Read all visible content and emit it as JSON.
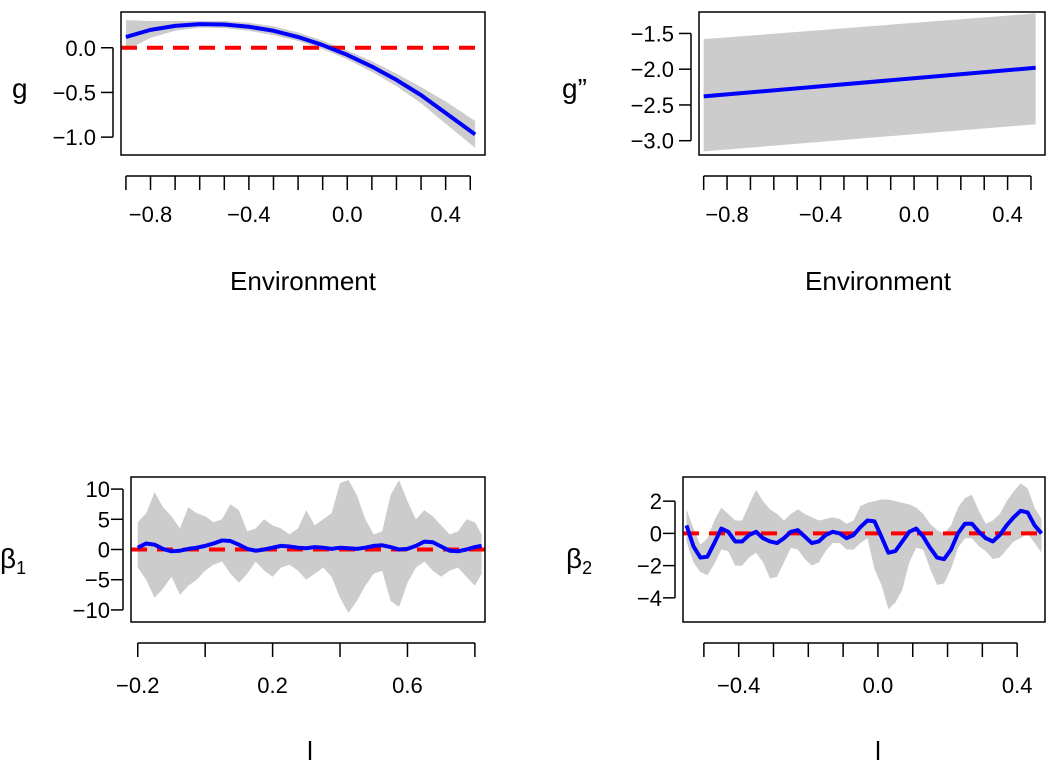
{
  "colors": {
    "fit": "#0000ff",
    "reference": "#ff0000",
    "band": "#cccccc",
    "axis": "#000000"
  },
  "chart_data": [
    {
      "id": "panel-g",
      "type": "line",
      "xlabel": "Environment",
      "ylabel": "g",
      "ylabel_sub": "",
      "xlim": [
        -0.92,
        0.56
      ],
      "ylim": [
        -1.2,
        0.4
      ],
      "xticks": [
        -0.9,
        -0.8,
        -0.7,
        -0.6,
        -0.5,
        -0.4,
        -0.3,
        -0.2,
        -0.1,
        0.0,
        0.1,
        0.2,
        0.3,
        0.4,
        0.5
      ],
      "xtick_labels": [
        {
          "value": -0.8,
          "label": "−0.8"
        },
        {
          "value": -0.4,
          "label": "−0.4"
        },
        {
          "value": 0.0,
          "label": "0.0"
        },
        {
          "value": 0.4,
          "label": "0.4"
        }
      ],
      "yticks": [
        {
          "value": -1.0,
          "label": "−1.0"
        },
        {
          "value": -0.5,
          "label": "−0.5"
        },
        {
          "value": 0.0,
          "label": "0.0"
        }
      ],
      "reference_line": 0,
      "x": [
        -0.9,
        -0.8,
        -0.7,
        -0.6,
        -0.5,
        -0.4,
        -0.3,
        -0.2,
        -0.1,
        0.0,
        0.1,
        0.2,
        0.3,
        0.4,
        0.52
      ],
      "fit": [
        0.12,
        0.2,
        0.245,
        0.265,
        0.26,
        0.235,
        0.19,
        0.12,
        0.03,
        -0.08,
        -0.21,
        -0.36,
        -0.53,
        -0.73,
        -0.97
      ],
      "lower": [
        -0.03,
        0.11,
        0.19,
        0.225,
        0.22,
        0.19,
        0.14,
        0.075,
        -0.015,
        -0.13,
        -0.27,
        -0.43,
        -0.62,
        -0.85,
        -1.12
      ],
      "upper": [
        0.31,
        0.3,
        0.3,
        0.3,
        0.3,
        0.28,
        0.24,
        0.17,
        0.08,
        -0.03,
        -0.15,
        -0.29,
        -0.44,
        -0.6,
        -0.82
      ]
    },
    {
      "id": "panel-g2",
      "type": "line",
      "xlabel": "Environment",
      "ylabel": "g”",
      "ylabel_sub": "",
      "xlim": [
        -0.92,
        0.56
      ],
      "ylim": [
        -3.2,
        -1.2
      ],
      "xticks": [
        -0.9,
        -0.8,
        -0.7,
        -0.6,
        -0.5,
        -0.4,
        -0.3,
        -0.2,
        -0.1,
        0.0,
        0.1,
        0.2,
        0.3,
        0.4,
        0.5
      ],
      "xtick_labels": [
        {
          "value": -0.8,
          "label": "−0.8"
        },
        {
          "value": -0.4,
          "label": "−0.4"
        },
        {
          "value": 0.0,
          "label": "0.0"
        },
        {
          "value": 0.4,
          "label": "0.4"
        }
      ],
      "yticks": [
        {
          "value": -3.0,
          "label": "−3.0"
        },
        {
          "value": -2.5,
          "label": "−2.5"
        },
        {
          "value": -2.0,
          "label": "−2.0"
        },
        {
          "value": -1.5,
          "label": "−1.5"
        }
      ],
      "reference_line": null,
      "x": [
        -0.9,
        0.52
      ],
      "fit": [
        -2.38,
        -1.98
      ],
      "lower": [
        -3.15,
        -2.77
      ],
      "upper": [
        -1.58,
        -1.22
      ]
    },
    {
      "id": "panel-b1",
      "type": "line",
      "xlabel": "l",
      "ylabel": "β",
      "ylabel_sub": "1",
      "xlim": [
        -0.22,
        0.83
      ],
      "ylim": [
        -12,
        12
      ],
      "xticks": [
        -0.2,
        0.0,
        0.2,
        0.4,
        0.6,
        0.8
      ],
      "xtick_labels": [
        {
          "value": -0.2,
          "label": "−0.2"
        },
        {
          "value": 0.2,
          "label": "0.2"
        },
        {
          "value": 0.6,
          "label": "0.6"
        }
      ],
      "yticks": [
        {
          "value": -10,
          "label": "−10"
        },
        {
          "value": -5,
          "label": "−5"
        },
        {
          "value": 0,
          "label": "0"
        },
        {
          "value": 5,
          "label": "5"
        },
        {
          "value": 10,
          "label": "10"
        }
      ],
      "reference_line": 0,
      "x": [
        -0.2,
        -0.175,
        -0.15,
        -0.125,
        -0.1,
        -0.075,
        -0.05,
        -0.025,
        0.0,
        0.025,
        0.05,
        0.075,
        0.1,
        0.125,
        0.15,
        0.175,
        0.2,
        0.225,
        0.25,
        0.275,
        0.3,
        0.325,
        0.35,
        0.375,
        0.4,
        0.425,
        0.45,
        0.475,
        0.5,
        0.525,
        0.55,
        0.575,
        0.6,
        0.625,
        0.65,
        0.675,
        0.7,
        0.725,
        0.75,
        0.775,
        0.8,
        0.82
      ],
      "fit": [
        0.3,
        1.0,
        0.8,
        0.1,
        -0.3,
        -0.2,
        0.1,
        0.3,
        0.6,
        1.0,
        1.5,
        1.4,
        0.8,
        0.1,
        -0.2,
        0.0,
        0.3,
        0.6,
        0.5,
        0.3,
        0.2,
        0.4,
        0.3,
        0.1,
        0.3,
        0.2,
        0.1,
        0.3,
        0.6,
        0.7,
        0.4,
        0.0,
        0.1,
        0.6,
        1.3,
        1.2,
        0.5,
        -0.2,
        -0.3,
        0.0,
        0.4,
        0.6
      ],
      "lower": [
        -3.0,
        -5.0,
        -8.0,
        -6.5,
        -4.5,
        -7.5,
        -6.0,
        -5.0,
        -3.5,
        -2.5,
        -2.0,
        -4.0,
        -5.5,
        -4.0,
        -2.0,
        -3.5,
        -4.5,
        -3.0,
        -2.5,
        -3.5,
        -5.0,
        -4.0,
        -3.0,
        -4.5,
        -8.0,
        -10.5,
        -8.5,
        -6.0,
        -4.0,
        -3.5,
        -8.5,
        -9.5,
        -5.5,
        -3.0,
        -2.0,
        -3.5,
        -4.5,
        -3.5,
        -3.0,
        -4.5,
        -6.0,
        -4.0
      ],
      "upper": [
        4.5,
        6.0,
        9.5,
        7.0,
        5.5,
        3.5,
        7.0,
        6.0,
        5.5,
        4.5,
        5.0,
        7.5,
        6.5,
        3.0,
        3.5,
        5.0,
        4.0,
        3.5,
        2.5,
        3.5,
        6.5,
        4.0,
        5.0,
        6.0,
        11.0,
        11.5,
        9.0,
        5.0,
        2.5,
        3.0,
        9.0,
        11.5,
        8.0,
        5.0,
        6.5,
        5.5,
        4.0,
        2.5,
        3.0,
        5.0,
        4.5,
        2.5
      ]
    },
    {
      "id": "panel-b2",
      "type": "line",
      "xlabel": "l",
      "ylabel": "β",
      "ylabel_sub": "2",
      "xlim": [
        -0.56,
        0.48
      ],
      "ylim": [
        -5.5,
        3.5
      ],
      "xticks": [
        -0.5,
        -0.4,
        -0.3,
        -0.2,
        -0.1,
        0.0,
        0.1,
        0.2,
        0.3,
        0.4
      ],
      "xtick_labels": [
        {
          "value": -0.4,
          "label": "−0.4"
        },
        {
          "value": 0.0,
          "label": "0.0"
        },
        {
          "value": 0.4,
          "label": "0.4"
        }
      ],
      "yticks": [
        {
          "value": -4,
          "label": "−4"
        },
        {
          "value": -2,
          "label": "−2"
        },
        {
          "value": 0,
          "label": "0"
        },
        {
          "value": 2,
          "label": "2"
        }
      ],
      "reference_line": 0,
      "x": [
        -0.55,
        -0.53,
        -0.51,
        -0.49,
        -0.47,
        -0.45,
        -0.43,
        -0.41,
        -0.39,
        -0.37,
        -0.35,
        -0.33,
        -0.31,
        -0.29,
        -0.27,
        -0.25,
        -0.23,
        -0.21,
        -0.19,
        -0.17,
        -0.15,
        -0.13,
        -0.11,
        -0.09,
        -0.07,
        -0.05,
        -0.03,
        -0.01,
        0.01,
        0.03,
        0.05,
        0.07,
        0.09,
        0.11,
        0.13,
        0.15,
        0.17,
        0.19,
        0.21,
        0.23,
        0.25,
        0.27,
        0.29,
        0.31,
        0.33,
        0.35,
        0.37,
        0.39,
        0.41,
        0.43,
        0.45,
        0.47
      ],
      "fit": [
        0.5,
        -0.8,
        -1.5,
        -1.45,
        -0.6,
        0.3,
        0.1,
        -0.5,
        -0.5,
        -0.1,
        0.1,
        -0.3,
        -0.5,
        -0.6,
        -0.3,
        0.1,
        0.2,
        -0.2,
        -0.6,
        -0.5,
        -0.1,
        0.1,
        0.0,
        -0.3,
        -0.1,
        0.4,
        0.8,
        0.75,
        -0.2,
        -1.2,
        -1.1,
        -0.5,
        0.1,
        0.3,
        -0.2,
        -0.9,
        -1.5,
        -1.6,
        -1.0,
        0.0,
        0.6,
        0.6,
        0.1,
        -0.3,
        -0.5,
        -0.1,
        0.5,
        1.0,
        1.4,
        1.3,
        0.5,
        0.0
      ],
      "lower": [
        -0.5,
        -1.8,
        -2.4,
        -2.6,
        -1.9,
        -1.0,
        -1.1,
        -2.0,
        -2.0,
        -1.5,
        -1.2,
        -1.8,
        -2.8,
        -2.7,
        -1.8,
        -0.9,
        -1.0,
        -1.6,
        -2.0,
        -1.8,
        -1.1,
        -0.6,
        -0.6,
        -1.0,
        -1.0,
        -0.6,
        -0.3,
        -2.2,
        -3.2,
        -4.7,
        -4.3,
        -3.5,
        -1.8,
        -0.9,
        -1.0,
        -2.2,
        -3.2,
        -3.1,
        -2.2,
        -0.9,
        -0.3,
        -0.3,
        -0.8,
        -1.1,
        -1.6,
        -1.5,
        -1.0,
        -0.5,
        -0.3,
        0.0,
        -0.6,
        -1.2
      ],
      "upper": [
        1.5,
        0.3,
        -0.7,
        -0.3,
        0.8,
        1.6,
        1.2,
        0.8,
        0.8,
        1.8,
        2.7,
        2.0,
        1.5,
        1.2,
        0.8,
        1.2,
        1.5,
        1.2,
        1.0,
        0.8,
        0.9,
        1.0,
        0.9,
        0.6,
        0.8,
        1.7,
        1.9,
        2.0,
        2.1,
        2.1,
        2.0,
        1.9,
        1.8,
        1.6,
        1.2,
        0.6,
        0.2,
        0.0,
        0.5,
        1.6,
        2.2,
        2.4,
        1.4,
        0.6,
        0.8,
        1.2,
        2.0,
        2.6,
        3.1,
        2.8,
        1.6,
        0.9
      ]
    }
  ]
}
